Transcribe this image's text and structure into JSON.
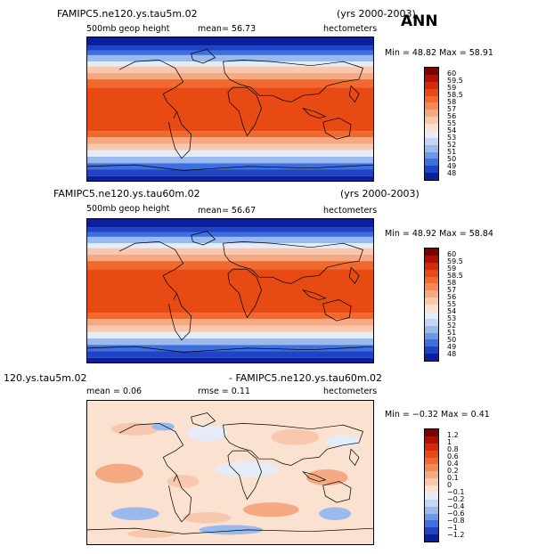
{
  "season": "ANN",
  "units": "hectometers",
  "panels": [
    {
      "title_left": "FAMIPC5.ne120.ys.tau5m.02",
      "title_right": "(yrs 2000-2003)",
      "subtitle_left": "500mb geop height",
      "stat_text": "mean=   56.73",
      "min_max": "Min =   48.82  Max =   58.91",
      "field": "abs"
    },
    {
      "title_left": "FAMIPC5.ne120.ys.tau60m.02",
      "title_right": "(yrs 2000-2003)",
      "subtitle_left": "500mb geop height",
      "stat_text": "mean=   56.67",
      "min_max": "Min =   48.92  Max =   58.84",
      "field": "abs"
    },
    {
      "title_left": "120.ys.tau5m.02",
      "title_right": "- FAMIPC5.ne120.ys.tau60m.02",
      "subtitle_left": "mean =    0.06",
      "stat_text": "rmse =    0.11",
      "min_max": "Min =  −0.32  Max =    0.41",
      "field": "diff"
    }
  ],
  "colorbar_abs": {
    "labels": [
      "60",
      "59.5",
      "59",
      "58.5",
      "58",
      "57",
      "56",
      "55",
      "54",
      "53",
      "52",
      "51",
      "50",
      "49",
      "48"
    ],
    "colors": [
      "#7a0000",
      "#b01000",
      "#d42a0a",
      "#e84a14",
      "#f06a30",
      "#f38a55",
      "#f5a983",
      "#f8c8ae",
      "#fbe1d0",
      "#e6ecf7",
      "#c4d5f1",
      "#9ab9ec",
      "#6c98e6",
      "#3d6fde",
      "#1f43c4",
      "#0a1f9a"
    ]
  },
  "colorbar_diff": {
    "labels": [
      "1.2",
      "1",
      "0.8",
      "0.6",
      "0.4",
      "0.2",
      "0.1",
      "0",
      "−0.1",
      "−0.2",
      "−0.4",
      "−0.6",
      "−0.8",
      "−1",
      "−1.2"
    ],
    "colors": [
      "#7a0000",
      "#b01000",
      "#d42a0a",
      "#e84a14",
      "#f06a30",
      "#f38a55",
      "#f5a983",
      "#f8c8ae",
      "#fbe1d0",
      "#e6ecf7",
      "#c4d5f1",
      "#9ab9ec",
      "#6c98e6",
      "#3d6fde",
      "#1f43c4",
      "#0a1f9a"
    ]
  }
}
